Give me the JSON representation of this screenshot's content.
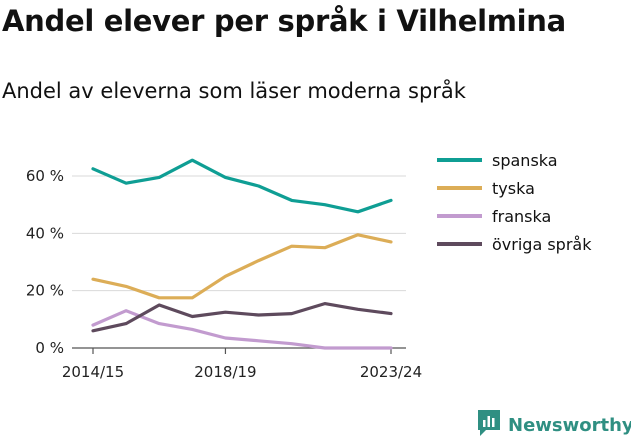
{
  "header": {
    "title": "Andel elever per språk i Vilhelmina",
    "subtitle": "Andel av eleverna som läser moderna språk"
  },
  "branding": {
    "name": "Newsworthy",
    "icon": "newsworthy-logo-icon",
    "color": "#2f8f82"
  },
  "chart_data": {
    "type": "line",
    "title": "Andel elever per språk i Vilhelmina",
    "subtitle": "Andel av eleverna som läser moderna språk",
    "x": [
      "2014/15",
      "2015/16",
      "2016/17",
      "2017/18",
      "2018/19",
      "2019/20",
      "2020/21",
      "2021/22",
      "2022/23",
      "2023/24"
    ],
    "x_tick_labels": [
      "2014/15",
      "2018/19",
      "2023/24"
    ],
    "y_ticks": [
      0,
      20,
      40,
      60
    ],
    "y_tick_labels": [
      "0 %",
      "20 %",
      "40 %",
      "60 %"
    ],
    "ylim": [
      0,
      70
    ],
    "grid": "horizontal",
    "legend_position": "right",
    "series": [
      {
        "name": "spanska",
        "color": "#0f9e94",
        "values": [
          62.5,
          57.5,
          59.5,
          65.5,
          59.5,
          56.5,
          51.5,
          50,
          47.5,
          51.5
        ]
      },
      {
        "name": "tyska",
        "color": "#dcad57",
        "values": [
          24,
          21.5,
          17.5,
          17.5,
          25,
          30.5,
          35.5,
          35,
          39.5,
          37
        ]
      },
      {
        "name": "franska",
        "color": "#c29bcf",
        "values": [
          8,
          13,
          8.5,
          6.5,
          3.5,
          2.5,
          1.5,
          0,
          0,
          0
        ]
      },
      {
        "name": "övriga språk",
        "color": "#5e4a5d",
        "values": [
          6,
          8.5,
          15,
          11,
          12.5,
          11.5,
          12,
          15.5,
          13.5,
          12
        ]
      }
    ]
  }
}
